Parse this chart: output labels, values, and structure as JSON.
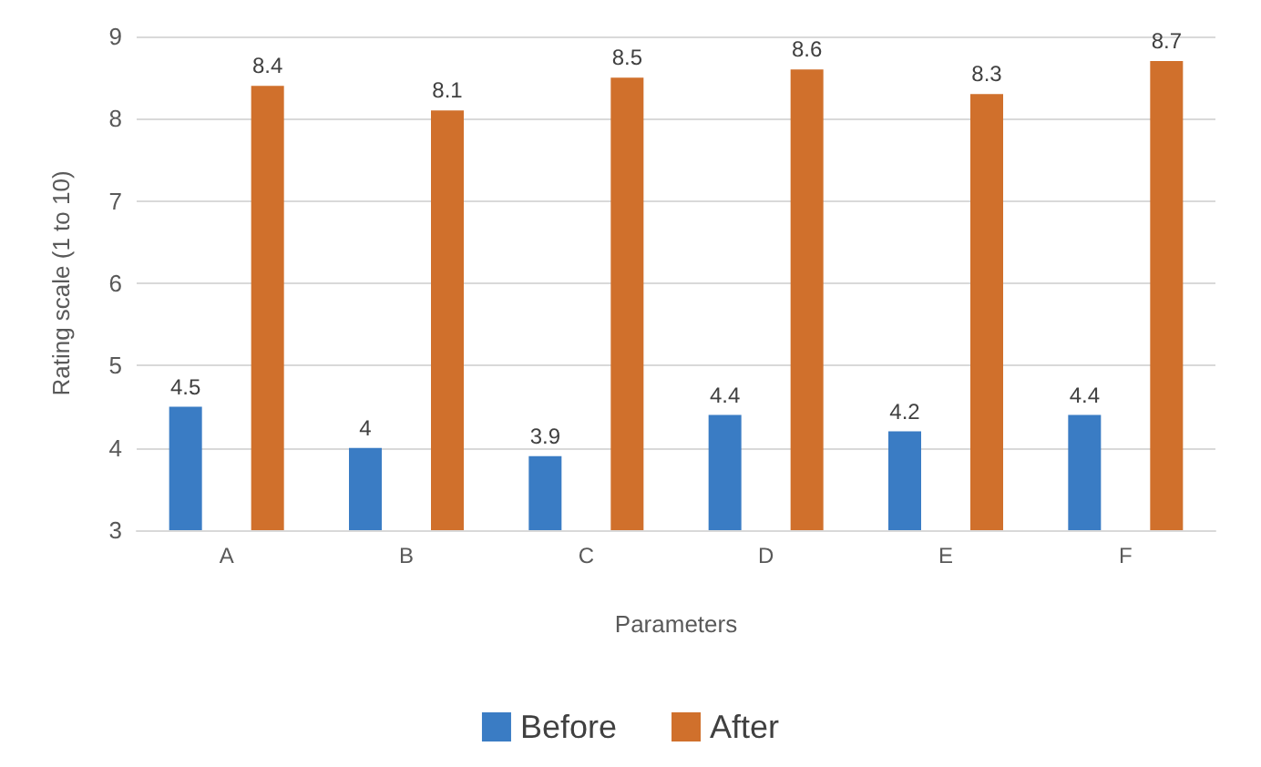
{
  "chart_data": {
    "type": "bar",
    "xlabel": "Parameters",
    "ylabel": "Rating scale (1 to 10)",
    "categories": [
      "A",
      "B",
      "C",
      "D",
      "E",
      "F"
    ],
    "series": [
      {
        "name": "Before",
        "color": "#3a7cc4",
        "values": [
          4.5,
          4,
          3.9,
          4.4,
          4.2,
          4.4
        ]
      },
      {
        "name": "After",
        "color": "#d0702c",
        "values": [
          8.4,
          8.1,
          8.5,
          8.6,
          8.3,
          8.7
        ]
      }
    ],
    "ylim": [
      3,
      9
    ],
    "yticks": [
      3,
      4,
      5,
      6,
      7,
      8,
      9
    ],
    "grid": "y",
    "legend": "bottom",
    "data_labels": true
  }
}
